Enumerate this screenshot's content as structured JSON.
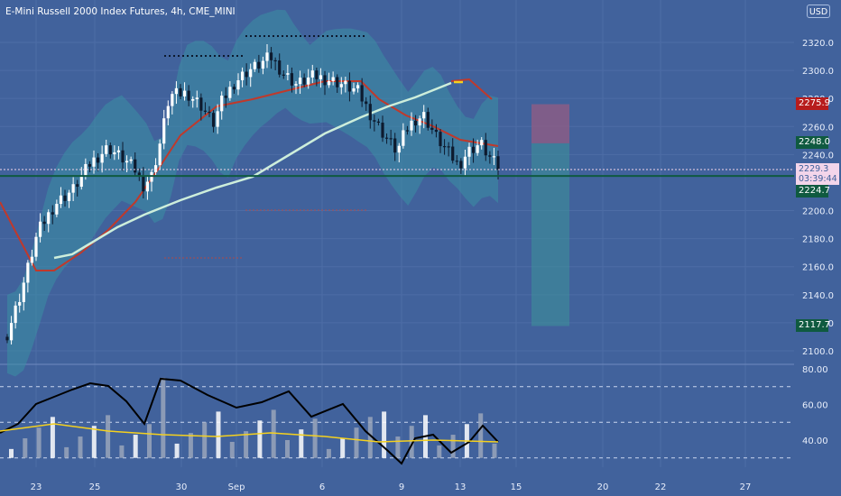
{
  "header": {
    "title": "E-Mini Russell 2000 Index Futures, 4h, CME_MINI"
  },
  "currency_badge": "USD",
  "price_axis": {
    "ticks": [
      "2320.0",
      "2300.0",
      "2280.0",
      "2260.0",
      "2240.0",
      "2200.0",
      "2180.0",
      "2160.0",
      "2140.0",
      "2120.0",
      "2100.0"
    ],
    "values": [
      2320,
      2300,
      2280,
      2260,
      2240,
      2200,
      2180,
      2160,
      2140,
      2120,
      2100
    ]
  },
  "indicator_axis": {
    "ticks": [
      "80.00",
      "60.00",
      "40.00"
    ],
    "values": [
      80,
      60,
      40
    ]
  },
  "time_axis": {
    "labels": [
      "23",
      "25",
      "30",
      "Sep",
      "6",
      "9",
      "13",
      "15",
      "20",
      "22",
      "27"
    ]
  },
  "price_tags": {
    "stop": {
      "value": "2275.9",
      "color": "#b71c1c"
    },
    "entry": {
      "value": "2248.0",
      "color": "#0f5a40"
    },
    "current": {
      "value": "2229.3",
      "countdown": "03:39:44",
      "color": "#f3d5ea"
    },
    "level": {
      "value": "2224.7",
      "color": "#0f5a40"
    },
    "target": {
      "value": "2117.7",
      "color": "#0f5a40"
    }
  },
  "colors": {
    "background": "#41629c",
    "band": "#3b8fa4",
    "fast_ma": "#c0392b",
    "slow_ma": "#cdeedb",
    "up_candle": "#ffffff",
    "down_candle": "#0d1a2e",
    "oscillator": "#000000",
    "signal": "#f5d11e"
  },
  "chart_data": {
    "type": "candlestick",
    "title": "E-Mini Russell 2000 Index Futures, 4h, CME_MINI",
    "x_labels": [
      "23",
      "25",
      "30",
      "Sep",
      "6",
      "9",
      "13",
      "15",
      "20",
      "22",
      "27"
    ],
    "ylim": [
      2090,
      2335
    ],
    "current_price": 2229.3,
    "horizontal_level": 2224.7,
    "position": {
      "stop": 2275.9,
      "entry": 2248.0,
      "target": 2117.7
    },
    "indicator": {
      "ylim": [
        25,
        80
      ],
      "levels": [
        70,
        50,
        30
      ]
    }
  }
}
